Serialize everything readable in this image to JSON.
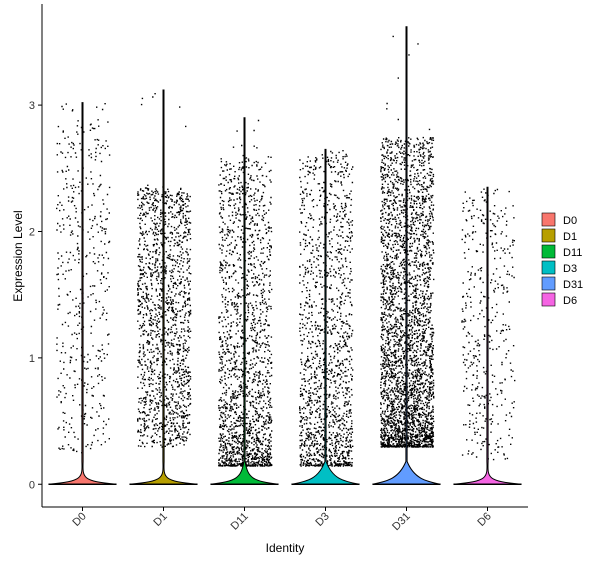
{
  "chart_data": {
    "type": "violin",
    "xlabel": "Identity",
    "ylabel": "Expression Level",
    "ylim": [
      -0.18,
      3.8
    ],
    "yticks": [
      0,
      1,
      2,
      3
    ],
    "categories": [
      "D0",
      "D1",
      "D11",
      "D3",
      "D31",
      "D6"
    ],
    "colors": {
      "D0": "#F8766D",
      "D1": "#B79F00",
      "D11": "#00BA38",
      "D3": "#00BFC4",
      "D31": "#619CFF",
      "D6": "#F564E3"
    },
    "series": [
      {
        "name": "D0",
        "max": 3.02,
        "zero_width_fraction": 0.0,
        "points_above_zero": 450,
        "point_range": [
          0.25,
          2.9
        ]
      },
      {
        "name": "D1",
        "max": 3.12,
        "zero_width_fraction": 0.0,
        "points_above_zero": 1500,
        "point_range": [
          0.3,
          2.35
        ]
      },
      {
        "name": "D11",
        "max": 2.9,
        "zero_width_fraction": 0.25,
        "points_above_zero": 1800,
        "point_range": [
          0.15,
          2.6
        ]
      },
      {
        "name": "D3",
        "max": 2.65,
        "zero_width_fraction": 0.5,
        "points_above_zero": 1500,
        "point_range": [
          0.15,
          2.6
        ]
      },
      {
        "name": "D31",
        "max": 3.62,
        "zero_width_fraction": 0.55,
        "points_above_zero": 3200,
        "point_range": [
          0.3,
          2.75
        ]
      },
      {
        "name": "D6",
        "max": 2.35,
        "zero_width_fraction": 0.0,
        "points_above_zero": 400,
        "point_range": [
          0.2,
          2.3
        ]
      }
    ],
    "legend": {
      "position": "right",
      "entries": [
        "D0",
        "D1",
        "D11",
        "D3",
        "D31",
        "D6"
      ]
    },
    "grid": false
  }
}
